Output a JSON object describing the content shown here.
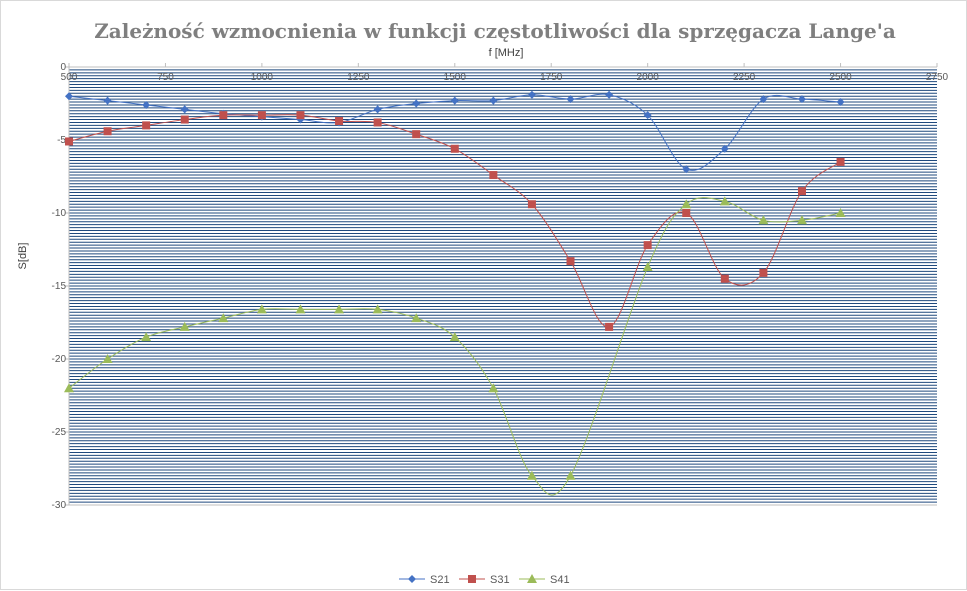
{
  "chart_data": {
    "type": "scatter",
    "title": "Zależność wzmocnienia w funkcji częstotliwości dla sprzęgacza Lange'a",
    "xlabel": "f [MHz]",
    "ylabel": "S[dB]",
    "xlim": [
      500,
      2750
    ],
    "ylim": [
      -30,
      0
    ],
    "x_ticks": [
      500,
      750,
      1000,
      1250,
      1500,
      1750,
      2000,
      2250,
      2500,
      2750
    ],
    "y_ticks": [
      0,
      -5,
      -10,
      -15,
      -20,
      -25,
      -30
    ],
    "x_tick_labels": [
      "500",
      "750",
      "1000",
      "1250",
      "1500",
      "1750",
      "2000",
      "2250",
      "2500",
      "2750"
    ],
    "y_tick_labels": [
      "0",
      "-5",
      "-10",
      "-15",
      "-20",
      "-25",
      "-30"
    ],
    "x_axis_position": "top",
    "grid": "dense horizontal lines",
    "legend_position": "bottom",
    "line_style": "smooth, thin",
    "series": [
      {
        "name": "S21",
        "color": "#4472c4",
        "marker": "diamond",
        "x": [
          500,
          600,
          700,
          800,
          900,
          1000,
          1100,
          1200,
          1300,
          1400,
          1500,
          1600,
          1700,
          1800,
          1900,
          2000,
          2100,
          2200,
          2300,
          2400,
          2500
        ],
        "y": [
          -2.0,
          -2.3,
          -2.6,
          -2.9,
          -3.2,
          -3.4,
          -3.6,
          -3.8,
          -2.9,
          -2.5,
          -2.3,
          -2.3,
          -1.9,
          -2.2,
          -1.9,
          -3.3,
          -7.0,
          -5.6,
          -2.2,
          -2.2,
          -2.4
        ]
      },
      {
        "name": "S31",
        "color": "#c0504d",
        "marker": "square",
        "x": [
          500,
          600,
          700,
          800,
          900,
          1000,
          1100,
          1200,
          1300,
          1400,
          1500,
          1600,
          1700,
          1800,
          1900,
          2000,
          2100,
          2200,
          2300,
          2400,
          2500
        ],
        "y": [
          -5.1,
          -4.4,
          -4.0,
          -3.6,
          -3.3,
          -3.3,
          -3.3,
          -3.7,
          -3.8,
          -4.6,
          -5.6,
          -7.4,
          -9.4,
          -13.3,
          -17.8,
          -12.2,
          -10.0,
          -14.5,
          -14.1,
          -8.5,
          -6.5
        ]
      },
      {
        "name": "S41",
        "color": "#9bbb59",
        "marker": "triangle",
        "x": [
          500,
          600,
          700,
          800,
          900,
          1000,
          1100,
          1200,
          1300,
          1400,
          1500,
          1600,
          1700,
          1800,
          2000,
          2100,
          2200,
          2300,
          2400,
          2500
        ],
        "y": [
          -22.0,
          -20.0,
          -18.5,
          -17.8,
          -17.2,
          -16.6,
          -16.6,
          -16.6,
          -16.6,
          -17.2,
          -18.5,
          -22.0,
          -28.0,
          -28.0,
          -13.7,
          -9.4,
          -9.2,
          -10.5,
          -10.5,
          -10.0
        ]
      }
    ]
  }
}
